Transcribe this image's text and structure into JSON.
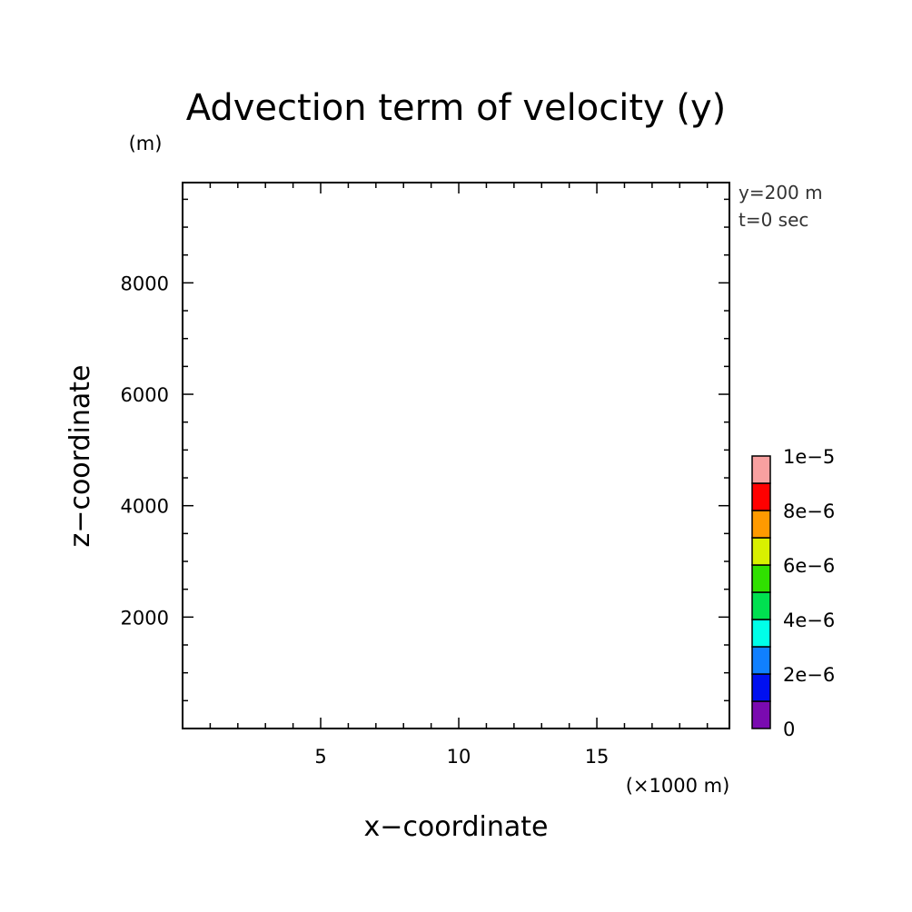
{
  "chart_data": {
    "type": "heatmap",
    "title": "Advection term of velocity (y)",
    "xlabel": "x−coordinate",
    "ylabel": "z−coordinate",
    "x_unit": "(×1000 m)",
    "y_unit": "(m)",
    "xlim": [
      0,
      19.8
    ],
    "ylim": [
      0,
      9800
    ],
    "x_ticks": [
      5,
      10,
      15
    ],
    "x_tick_labels": [
      "5",
      "10",
      "15"
    ],
    "x_minor_step": 1,
    "y_ticks": [
      2000,
      4000,
      6000,
      8000
    ],
    "y_tick_labels": [
      "2000",
      "4000",
      "6000",
      "8000"
    ],
    "y_minor_step": 500,
    "info_lines": [
      "y=200 m",
      "t=0 sec"
    ],
    "values": [],
    "colorbar": {
      "range": [
        0,
        1e-05
      ],
      "colors": [
        "#7a0ab0",
        "#0010f0",
        "#1080ff",
        "#00ffe8",
        "#00e050",
        "#30e000",
        "#d8f000",
        "#ff9a00",
        "#ff0000",
        "#f8a0a0"
      ],
      "tick_values": [
        0,
        2e-06,
        4e-06,
        6e-06,
        8e-06,
        1e-05
      ],
      "tick_labels": [
        "0",
        "2e−6",
        "4e−6",
        "6e−6",
        "8e−6",
        "1e−5"
      ]
    }
  }
}
